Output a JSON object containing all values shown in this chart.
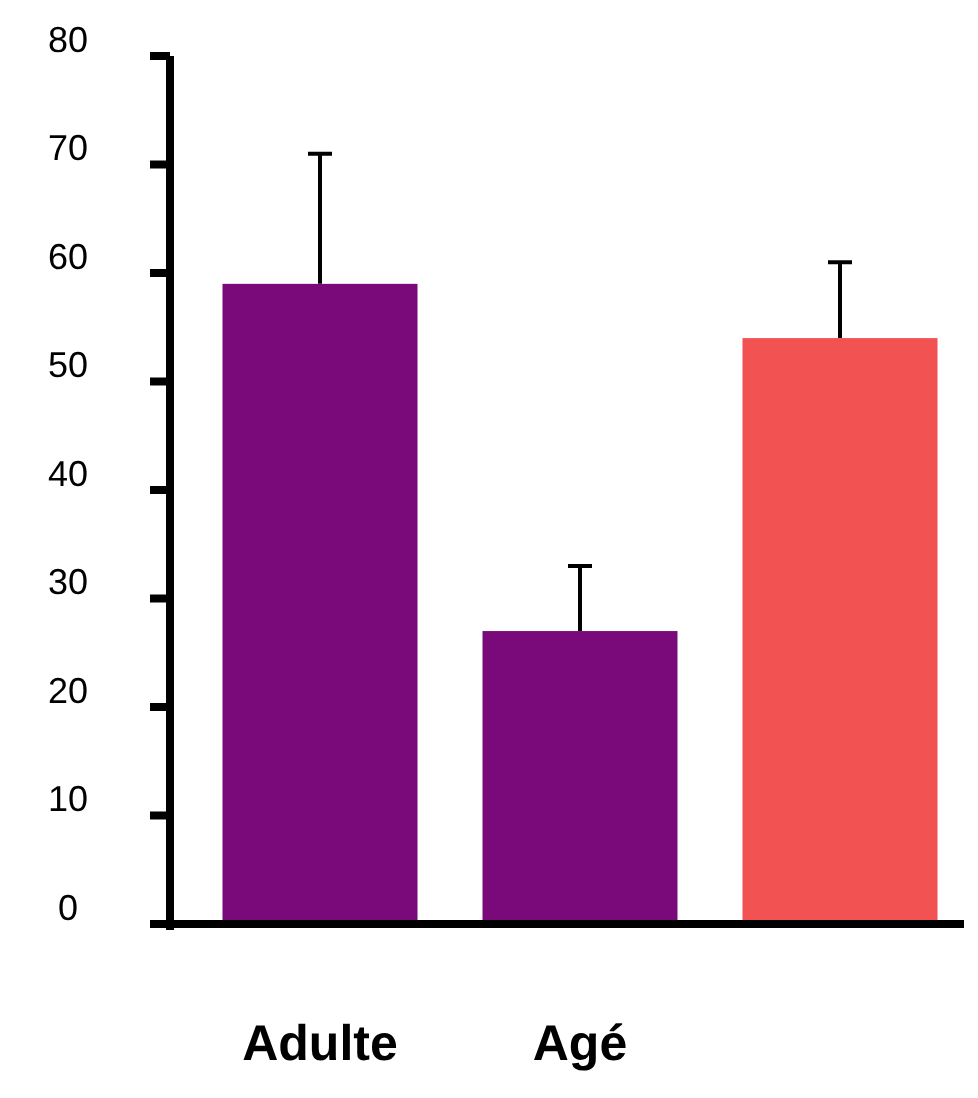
{
  "chart_data": {
    "type": "bar",
    "categories": [
      "Adulte",
      "Agé",
      null
    ],
    "values": [
      59,
      27,
      54
    ],
    "colors": [
      "#7a0a7a",
      "#7a0a7a",
      "#f25252"
    ],
    "errors": [
      [
        59,
        71
      ],
      [
        27,
        33
      ],
      [
        54,
        61
      ]
    ],
    "ylim": [
      0,
      80
    ],
    "yticks": [
      0,
      10,
      20,
      30,
      40,
      50,
      60,
      70,
      80
    ],
    "grid": false
  }
}
